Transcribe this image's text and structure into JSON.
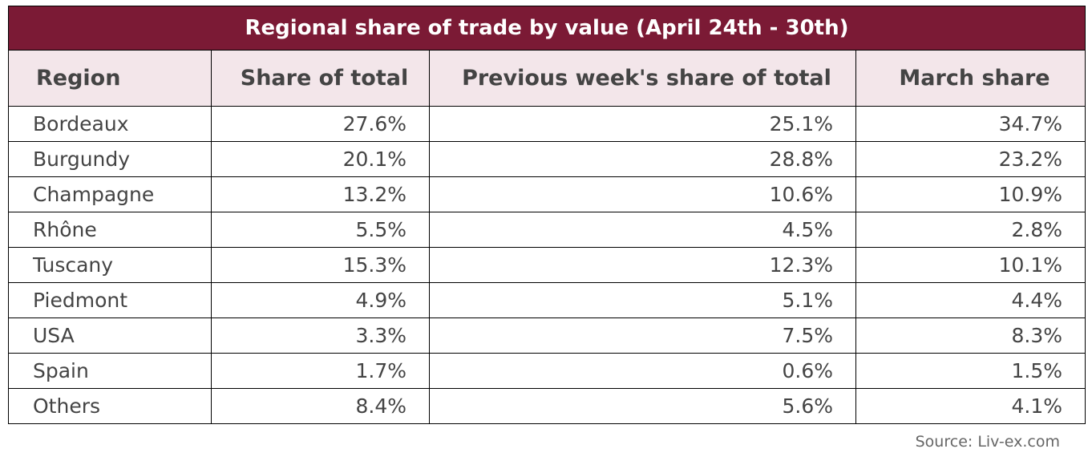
{
  "chart_data": {
    "type": "table",
    "title": "Regional share of trade by value (April 24th - 30th)",
    "columns": [
      "Region",
      "Share of total",
      "Previous week's share of total",
      "March share"
    ],
    "rows": [
      [
        "Bordeaux",
        "27.6%",
        "25.1%",
        "34.7%"
      ],
      [
        "Burgundy",
        "20.1%",
        "28.8%",
        "23.2%"
      ],
      [
        "Champagne",
        "13.2%",
        "10.6%",
        "10.9%"
      ],
      [
        "Rhône",
        "5.5%",
        "4.5%",
        "2.8%"
      ],
      [
        "Tuscany",
        "15.3%",
        "12.3%",
        "10.1%"
      ],
      [
        "Piedmont",
        "4.9%",
        "5.1%",
        "4.4%"
      ],
      [
        "USA",
        "3.3%",
        "7.5%",
        "8.3%"
      ],
      [
        "Spain",
        "1.7%",
        "0.6%",
        "1.5%"
      ],
      [
        "Others",
        "8.4%",
        "5.6%",
        "4.1%"
      ]
    ],
    "source": "Source: Liv-ex.com"
  },
  "colors": {
    "title_bg": "#7b1a35",
    "header_bg": "#f3e6ea",
    "text": "#444444"
  }
}
